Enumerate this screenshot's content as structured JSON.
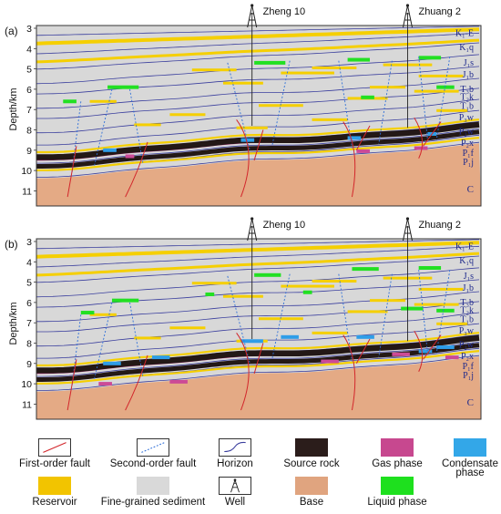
{
  "panels": [
    {
      "label": "(a)",
      "wells": [
        "Zheng 10",
        "Zhuang 2"
      ]
    },
    {
      "label": "(b)",
      "wells": [
        "Zheng 10",
        "Zhuang 2"
      ]
    }
  ],
  "depth_axis": {
    "title": "Depth/km",
    "ticks_a": [
      "3",
      "4",
      "5",
      "6",
      "7",
      "8",
      "9",
      "10",
      "11"
    ],
    "ticks_b": [
      "3",
      "4",
      "5",
      "6",
      "7",
      "8",
      "9",
      "10",
      "11"
    ]
  },
  "strata": [
    "K₁-E",
    "K₁q",
    "J₁s",
    "J₁b",
    "T₃b",
    "T₂k",
    "T₁b",
    "P₃w",
    "P₂w",
    "P₂x",
    "P₁f",
    "P₁j",
    "C"
  ],
  "legend": [
    {
      "label": "First-order fault",
      "icon": "first-order-fault-icon"
    },
    {
      "label": "Second-order fault",
      "icon": "second-order-fault-icon"
    },
    {
      "label": "Horizon",
      "icon": "horizon-icon"
    },
    {
      "label": "Source rock",
      "color": "#2b1d1b"
    },
    {
      "label": "Gas phase",
      "color": "#c7488f"
    },
    {
      "label": "Condensate\nphase",
      "color": "#33a7e8"
    },
    {
      "label": "Reservoir",
      "color": "#f2c400"
    },
    {
      "label": "Fine-grained sediment",
      "color": "#d9d9d9"
    },
    {
      "label": "Well",
      "icon": "well-icon"
    },
    {
      "label": "Base",
      "color": "#e0a47f"
    },
    {
      "label": "Liquid phase",
      "color": "#1ee01e"
    }
  ],
  "colors": {
    "sediment": "#d8d8d8",
    "base": "#e4aa85",
    "source": "#231816",
    "reservoir": "#f5cf00",
    "horizon": "#3b3f9e",
    "fault1": "#d2262b",
    "fault2": "#2e6fd8",
    "gas": "#cc4a96",
    "liquid": "#22e022",
    "condensate": "#2e9de8"
  }
}
